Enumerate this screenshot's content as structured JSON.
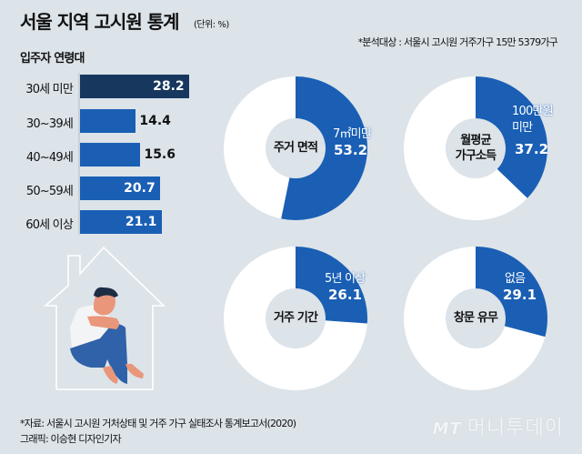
{
  "header": {
    "title": "서울 지역 고시원 통계",
    "unit": "(단위: %)",
    "note": "*분석대상 : 서울시 고시원 거주가구 15만 5379가구"
  },
  "colors": {
    "background": "#dce3e9",
    "highlight_bar": "#17375e",
    "bar": "#1a5fb4",
    "donut_rest": "#ffffff"
  },
  "chart_data": [
    {
      "type": "bar",
      "orientation": "horizontal",
      "title": "입주자 연령대",
      "categories": [
        "30세 미만",
        "30~39세",
        "40~49세",
        "50~59세",
        "60세 이상"
      ],
      "values": [
        28.2,
        14.4,
        15.6,
        20.7,
        21.1
      ],
      "value_labels": [
        "28.2",
        "14.4",
        "15.6",
        "20.7",
        "21.1"
      ]
    },
    {
      "type": "pie",
      "variant": "donut",
      "title": "주거 면적",
      "category": "7㎡미만",
      "value": 53.2,
      "value_label": "53.2"
    },
    {
      "type": "pie",
      "variant": "donut",
      "title": "월평균 가구소득",
      "title_lines": [
        "월평균",
        "가구소득"
      ],
      "category_lines": [
        "100만원",
        "미만"
      ],
      "value": 37.2,
      "value_label": "37.2"
    },
    {
      "type": "pie",
      "variant": "donut",
      "title": "거주 기간",
      "category": "5년 이상",
      "value": 26.1,
      "value_label": "26.1"
    },
    {
      "type": "pie",
      "variant": "donut",
      "title": "창문 유무",
      "category": "없음",
      "value": 29.1,
      "value_label": "29.1"
    }
  ],
  "footer": {
    "source": "*자료: 서울시 고시원 거처상태 및 거주 가구 실태조사 통계보고서(2020)",
    "credit": "그래픽: 이승현 디자인기자",
    "logo_mark": "MT",
    "logo_text": "머니투데이"
  }
}
